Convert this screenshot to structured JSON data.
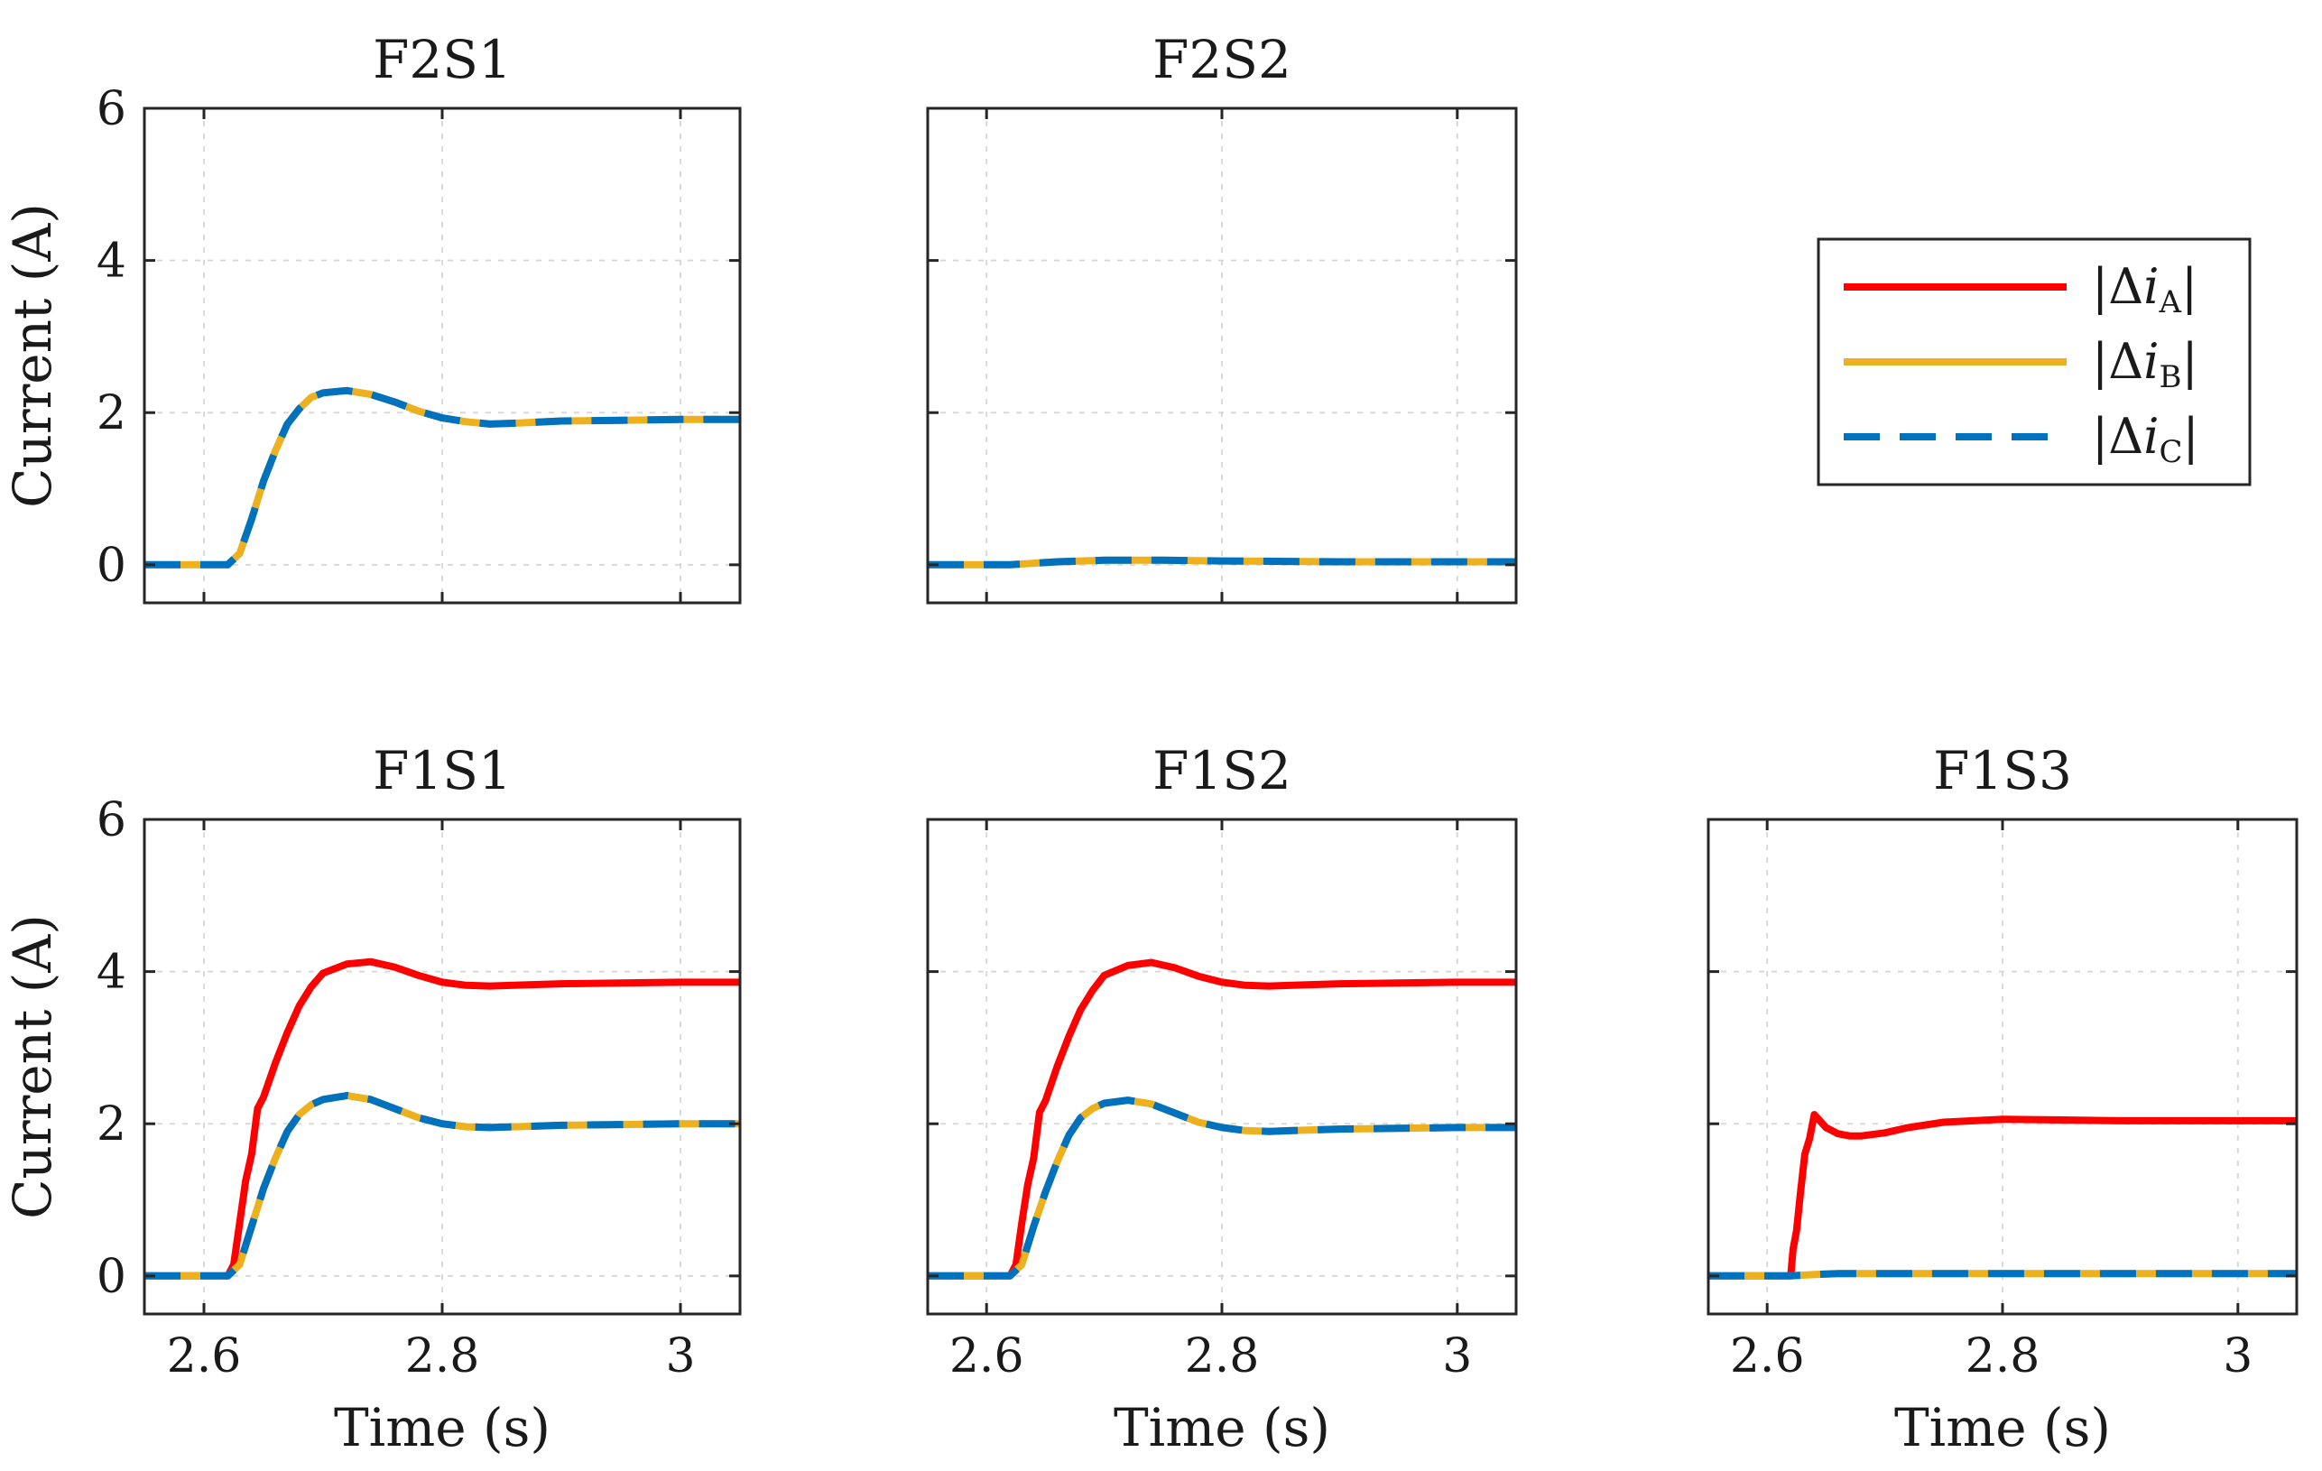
{
  "figure": {
    "legend": {
      "entries": [
        {
          "id": "A",
          "delta": "|Δ",
          "var": "i",
          "sub": "A",
          "close": "|",
          "color": "#ff0000",
          "dash": "solid"
        },
        {
          "id": "B",
          "delta": "|Δ",
          "var": "i",
          "sub": "B",
          "close": "|",
          "color": "#edb120",
          "dash": "solid"
        },
        {
          "id": "C",
          "delta": "|Δ",
          "var": "i",
          "sub": "C",
          "close": "|",
          "color": "#0072bd",
          "dash": "dashed"
        }
      ]
    }
  },
  "chart_data": [
    {
      "type": "line",
      "title": "F2S1",
      "xlabel": "",
      "ylabel": "Current (A)",
      "xlim": [
        2.55,
        3.05
      ],
      "ylim": [
        -0.5,
        6
      ],
      "xticks": [
        2.6,
        2.8,
        3.0
      ],
      "xtick_labels": [
        "",
        "",
        ""
      ],
      "yticks": [
        0,
        2,
        4,
        6
      ],
      "ytick_labels": [
        "0",
        "2",
        "4",
        "6"
      ],
      "grid": true,
      "series": [
        {
          "name": "|Δi_A|",
          "color": "#ff0000",
          "dash": "solid",
          "visible": false,
          "x": [],
          "y": []
        },
        {
          "name": "|Δi_B|",
          "color": "#edb120",
          "dash": "solid",
          "x": [
            2.55,
            2.62,
            2.63,
            2.64,
            2.65,
            2.66,
            2.67,
            2.68,
            2.69,
            2.7,
            2.72,
            2.74,
            2.76,
            2.78,
            2.8,
            2.82,
            2.84,
            2.86,
            2.9,
            2.95,
            3.0,
            3.05
          ],
          "y": [
            0,
            0,
            0.15,
            0.6,
            1.1,
            1.5,
            1.85,
            2.05,
            2.2,
            2.26,
            2.29,
            2.24,
            2.14,
            2.02,
            1.93,
            1.88,
            1.85,
            1.86,
            1.89,
            1.9,
            1.91,
            1.91
          ]
        },
        {
          "name": "|Δi_C|",
          "color": "#0072bd",
          "dash": "dashed",
          "x": [
            2.55,
            2.62,
            2.63,
            2.64,
            2.65,
            2.66,
            2.67,
            2.68,
            2.69,
            2.7,
            2.72,
            2.74,
            2.76,
            2.78,
            2.8,
            2.82,
            2.84,
            2.86,
            2.9,
            2.95,
            3.0,
            3.05
          ],
          "y": [
            0,
            0,
            0.15,
            0.6,
            1.1,
            1.5,
            1.85,
            2.05,
            2.2,
            2.26,
            2.29,
            2.24,
            2.14,
            2.02,
            1.93,
            1.88,
            1.85,
            1.86,
            1.89,
            1.9,
            1.91,
            1.91
          ]
        }
      ]
    },
    {
      "type": "line",
      "title": "F2S2",
      "xlabel": "",
      "ylabel": "",
      "xlim": [
        2.55,
        3.05
      ],
      "ylim": [
        -0.5,
        6
      ],
      "xticks": [
        2.6,
        2.8,
        3.0
      ],
      "xtick_labels": [
        "",
        "",
        ""
      ],
      "yticks": [
        0,
        2,
        4,
        6
      ],
      "ytick_labels": [
        "",
        "",
        "",
        ""
      ],
      "grid": true,
      "series": [
        {
          "name": "|Δi_A|",
          "color": "#ff0000",
          "dash": "solid",
          "visible": false,
          "x": [],
          "y": []
        },
        {
          "name": "|Δi_B|",
          "color": "#edb120",
          "dash": "solid",
          "x": [
            2.55,
            2.62,
            2.66,
            2.7,
            2.75,
            2.8,
            2.9,
            3.0,
            3.05
          ],
          "y": [
            0,
            0,
            0.04,
            0.06,
            0.06,
            0.05,
            0.04,
            0.04,
            0.04
          ]
        },
        {
          "name": "|Δi_C|",
          "color": "#0072bd",
          "dash": "dashed",
          "x": [
            2.55,
            2.62,
            2.66,
            2.7,
            2.75,
            2.8,
            2.9,
            3.0,
            3.05
          ],
          "y": [
            0,
            0,
            0.04,
            0.06,
            0.06,
            0.05,
            0.04,
            0.04,
            0.04
          ]
        }
      ]
    },
    {
      "type": "line",
      "title": "F1S1",
      "xlabel": "Time (s)",
      "ylabel": "Current (A)",
      "xlim": [
        2.55,
        3.05
      ],
      "ylim": [
        -0.5,
        6
      ],
      "xticks": [
        2.6,
        2.8,
        3.0
      ],
      "xtick_labels": [
        "2.6",
        "2.8",
        "3"
      ],
      "yticks": [
        0,
        2,
        4,
        6
      ],
      "ytick_labels": [
        "0",
        "2",
        "4",
        "6"
      ],
      "grid": true,
      "series": [
        {
          "name": "|Δi_A|",
          "color": "#ff0000",
          "dash": "solid",
          "x": [
            2.55,
            2.62,
            2.625,
            2.63,
            2.635,
            2.64,
            2.645,
            2.65,
            2.66,
            2.67,
            2.68,
            2.69,
            2.7,
            2.72,
            2.74,
            2.76,
            2.78,
            2.8,
            2.82,
            2.84,
            2.86,
            2.9,
            2.95,
            3.0,
            3.05
          ],
          "y": [
            0,
            0,
            0.15,
            0.7,
            1.25,
            1.6,
            2.2,
            2.35,
            2.8,
            3.2,
            3.55,
            3.8,
            3.98,
            4.1,
            4.13,
            4.06,
            3.95,
            3.86,
            3.82,
            3.81,
            3.82,
            3.84,
            3.85,
            3.86,
            3.86
          ]
        },
        {
          "name": "|Δi_B|",
          "color": "#edb120",
          "dash": "solid",
          "x": [
            2.55,
            2.62,
            2.63,
            2.64,
            2.65,
            2.66,
            2.67,
            2.68,
            2.69,
            2.7,
            2.72,
            2.74,
            2.76,
            2.78,
            2.8,
            2.82,
            2.84,
            2.86,
            2.9,
            2.95,
            3.0,
            3.05
          ],
          "y": [
            0,
            0,
            0.15,
            0.65,
            1.15,
            1.55,
            1.9,
            2.12,
            2.25,
            2.32,
            2.37,
            2.32,
            2.2,
            2.08,
            2.0,
            1.96,
            1.95,
            1.96,
            1.98,
            1.99,
            2.0,
            2.0
          ]
        },
        {
          "name": "|Δi_C|",
          "color": "#0072bd",
          "dash": "dashed",
          "x": [
            2.55,
            2.62,
            2.63,
            2.64,
            2.65,
            2.66,
            2.67,
            2.68,
            2.69,
            2.7,
            2.72,
            2.74,
            2.76,
            2.78,
            2.8,
            2.82,
            2.84,
            2.86,
            2.9,
            2.95,
            3.0,
            3.05
          ],
          "y": [
            0,
            0,
            0.15,
            0.65,
            1.15,
            1.55,
            1.9,
            2.12,
            2.25,
            2.32,
            2.37,
            2.32,
            2.2,
            2.08,
            2.0,
            1.96,
            1.95,
            1.96,
            1.98,
            1.99,
            2.0,
            2.0
          ]
        }
      ]
    },
    {
      "type": "line",
      "title": "F1S2",
      "xlabel": "Time (s)",
      "ylabel": "",
      "xlim": [
        2.55,
        3.05
      ],
      "ylim": [
        -0.5,
        6
      ],
      "xticks": [
        2.6,
        2.8,
        3.0
      ],
      "xtick_labels": [
        "2.6",
        "2.8",
        "3"
      ],
      "yticks": [
        0,
        2,
        4,
        6
      ],
      "ytick_labels": [
        "",
        "",
        "",
        ""
      ],
      "grid": true,
      "series": [
        {
          "name": "|Δi_A|",
          "color": "#ff0000",
          "dash": "solid",
          "x": [
            2.55,
            2.62,
            2.625,
            2.63,
            2.635,
            2.64,
            2.645,
            2.65,
            2.66,
            2.67,
            2.68,
            2.69,
            2.7,
            2.72,
            2.74,
            2.76,
            2.78,
            2.8,
            2.82,
            2.84,
            2.86,
            2.9,
            2.95,
            3.0,
            3.05
          ],
          "y": [
            0,
            0,
            0.15,
            0.7,
            1.2,
            1.55,
            2.15,
            2.3,
            2.75,
            3.15,
            3.5,
            3.75,
            3.95,
            4.08,
            4.12,
            4.05,
            3.94,
            3.86,
            3.82,
            3.81,
            3.82,
            3.84,
            3.85,
            3.86,
            3.86
          ]
        },
        {
          "name": "|Δi_B|",
          "color": "#edb120",
          "dash": "solid",
          "x": [
            2.55,
            2.62,
            2.63,
            2.64,
            2.65,
            2.66,
            2.67,
            2.68,
            2.69,
            2.7,
            2.72,
            2.74,
            2.76,
            2.78,
            2.8,
            2.82,
            2.84,
            2.86,
            2.9,
            2.95,
            3.0,
            3.05
          ],
          "y": [
            0,
            0,
            0.15,
            0.65,
            1.1,
            1.5,
            1.85,
            2.08,
            2.2,
            2.27,
            2.31,
            2.26,
            2.14,
            2.02,
            1.95,
            1.91,
            1.9,
            1.91,
            1.93,
            1.94,
            1.95,
            1.95
          ]
        },
        {
          "name": "|Δi_C|",
          "color": "#0072bd",
          "dash": "dashed",
          "x": [
            2.55,
            2.62,
            2.63,
            2.64,
            2.65,
            2.66,
            2.67,
            2.68,
            2.69,
            2.7,
            2.72,
            2.74,
            2.76,
            2.78,
            2.8,
            2.82,
            2.84,
            2.86,
            2.9,
            2.95,
            3.0,
            3.05
          ],
          "y": [
            0,
            0,
            0.15,
            0.65,
            1.1,
            1.5,
            1.85,
            2.08,
            2.2,
            2.27,
            2.31,
            2.26,
            2.14,
            2.02,
            1.95,
            1.91,
            1.9,
            1.91,
            1.93,
            1.94,
            1.95,
            1.95
          ]
        }
      ]
    },
    {
      "type": "line",
      "title": "F1S3",
      "xlabel": "Time (s)",
      "ylabel": "",
      "xlim": [
        2.55,
        3.05
      ],
      "ylim": [
        -0.5,
        6
      ],
      "xticks": [
        2.6,
        2.8,
        3.0
      ],
      "xtick_labels": [
        "2.6",
        "2.8",
        "3"
      ],
      "yticks": [
        0,
        2,
        4,
        6
      ],
      "ytick_labels": [
        "",
        "",
        "",
        ""
      ],
      "grid": true,
      "series": [
        {
          "name": "|Δi_A|",
          "color": "#ff0000",
          "dash": "solid",
          "x": [
            2.55,
            2.62,
            2.622,
            2.625,
            2.628,
            2.632,
            2.636,
            2.64,
            2.65,
            2.66,
            2.67,
            2.68,
            2.7,
            2.72,
            2.75,
            2.8,
            2.85,
            2.9,
            2.95,
            3.0,
            3.05
          ],
          "y": [
            0,
            0,
            0.35,
            0.6,
            1.05,
            1.6,
            1.8,
            2.12,
            1.95,
            1.87,
            1.84,
            1.84,
            1.88,
            1.95,
            2.02,
            2.06,
            2.05,
            2.04,
            2.04,
            2.04,
            2.04
          ]
        },
        {
          "name": "|Δi_B|",
          "color": "#edb120",
          "dash": "solid",
          "x": [
            2.55,
            2.62,
            2.64,
            2.66,
            2.7,
            2.8,
            2.9,
            3.0,
            3.05
          ],
          "y": [
            0,
            0,
            0.02,
            0.03,
            0.03,
            0.03,
            0.03,
            0.03,
            0.03
          ]
        },
        {
          "name": "|Δi_C|",
          "color": "#0072bd",
          "dash": "dashed",
          "x": [
            2.55,
            2.62,
            2.64,
            2.66,
            2.7,
            2.8,
            2.9,
            3.0,
            3.05
          ],
          "y": [
            0,
            0,
            0.02,
            0.03,
            0.03,
            0.03,
            0.03,
            0.03,
            0.03
          ]
        }
      ]
    }
  ]
}
